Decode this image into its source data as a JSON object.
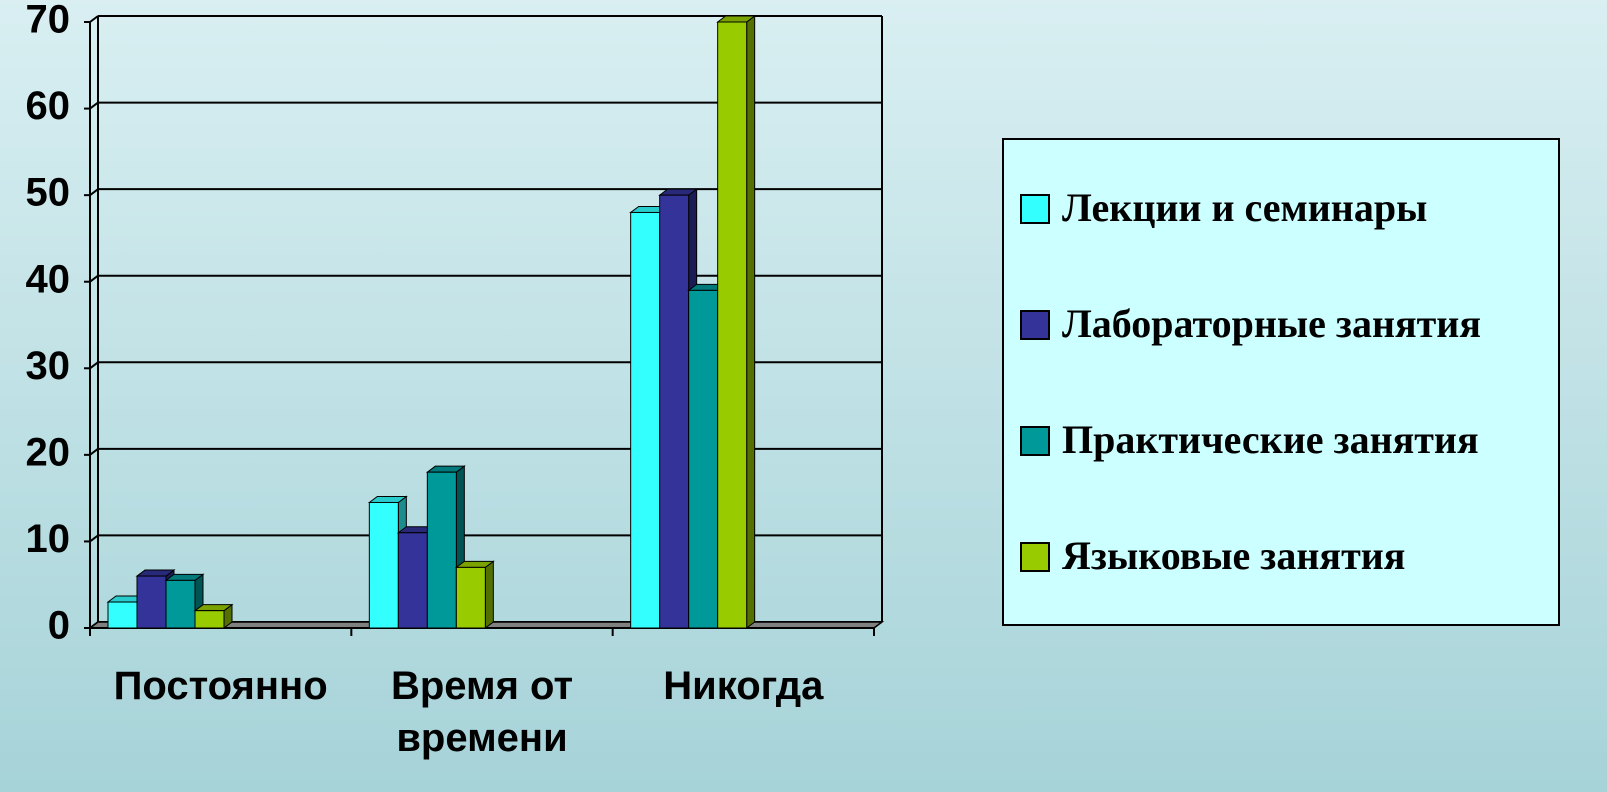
{
  "chart_data": {
    "type": "bar3d",
    "categories": [
      "Постоянно",
      "Время от времени",
      "Никогда"
    ],
    "series": [
      {
        "name": "Лекции и семинары",
        "color": "#33ffff",
        "values": [
          3,
          14.5,
          48
        ]
      },
      {
        "name": "Лабораторные занятия",
        "color": "#333399",
        "values": [
          6,
          11,
          50
        ]
      },
      {
        "name": "Практические занятия",
        "color": "#009999",
        "values": [
          5.5,
          18,
          39
        ]
      },
      {
        "name": "Языковые занятия",
        "color": "#99cc00",
        "values": [
          2,
          7,
          70
        ]
      }
    ],
    "ylim": [
      0,
      70
    ],
    "yticks": [
      0,
      10,
      20,
      30,
      40,
      50,
      60,
      70
    ],
    "grid": true,
    "legend": "right"
  }
}
